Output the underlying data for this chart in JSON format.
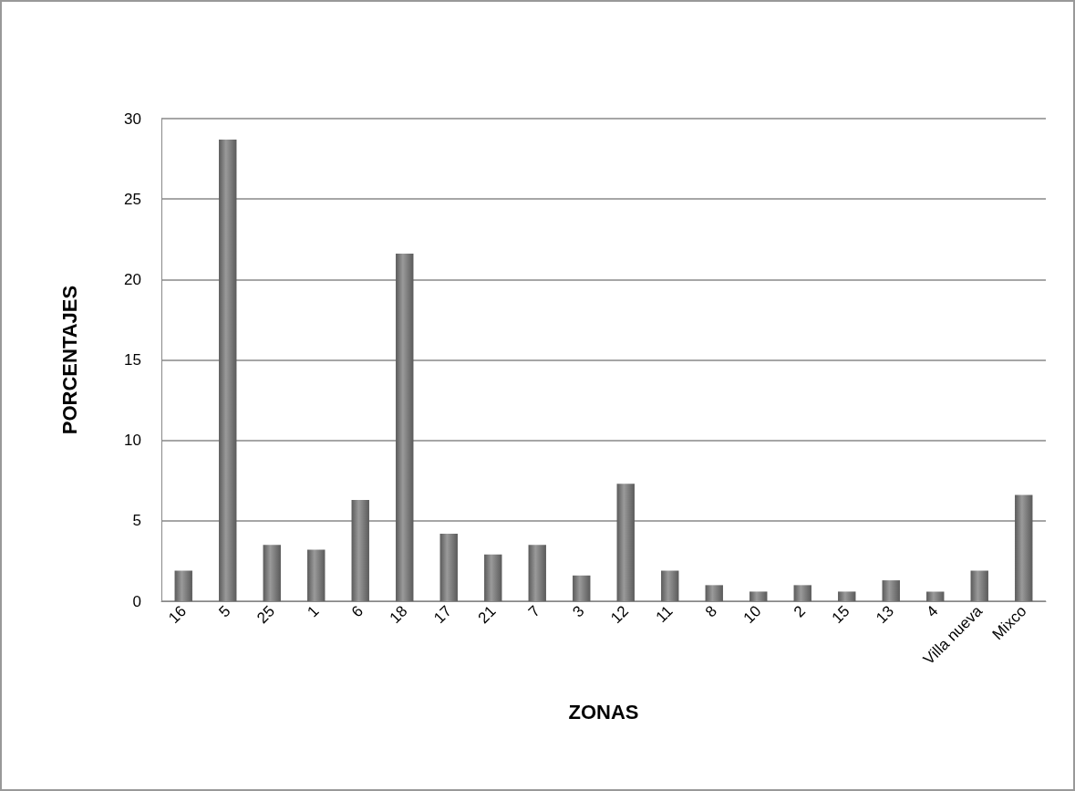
{
  "chart_data": {
    "type": "bar",
    "xlabel": "ZONAS",
    "ylabel": "PORCENTAJES",
    "categories": [
      "16",
      "5",
      "25",
      "1",
      "6",
      "18",
      "17",
      "21",
      "7",
      "3",
      "12",
      "11",
      "8",
      "10",
      "2",
      "15",
      "13",
      "4",
      "Villa nueva",
      "Mixco"
    ],
    "values": [
      1.9,
      28.7,
      3.5,
      3.2,
      6.3,
      21.6,
      4.2,
      2.9,
      3.5,
      1.6,
      7.3,
      1.9,
      1.0,
      0.6,
      1.0,
      0.6,
      1.3,
      0.6,
      1.9,
      6.6
    ],
    "color": "#5a5a5a",
    "ylim": [
      0,
      30
    ],
    "yticks": [
      0,
      5,
      10,
      15,
      20,
      25,
      30
    ],
    "grid": "y"
  }
}
